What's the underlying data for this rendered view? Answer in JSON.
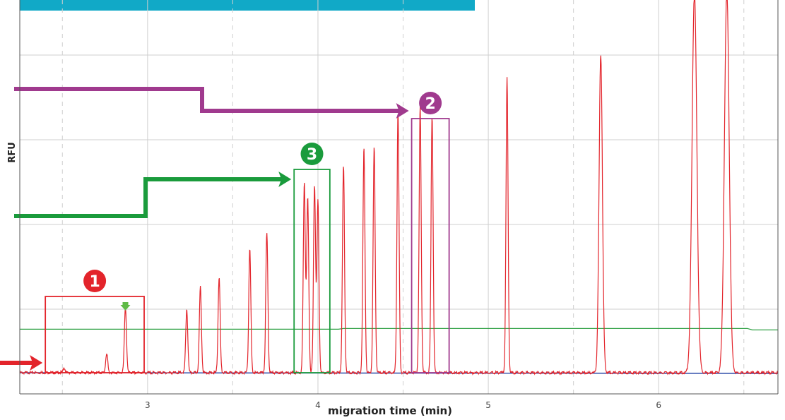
{
  "colors": {
    "banner": "#11a9c7",
    "trace": "#e3242b",
    "baseline": "#2b4aa8",
    "threshold": "#2ea043",
    "box1": "#e3242b",
    "box2": "#a03a8e",
    "box3": "#1a9b3c",
    "grid": "#cfcfcf",
    "axis": "#555555"
  },
  "chart_data": {
    "type": "line",
    "title": "",
    "xlabel": "migration time (min)",
    "ylabel": "RFU",
    "xlim": [
      2.25,
      6.7
    ],
    "ylim": [
      0,
      1
    ],
    "x_ticks": [
      {
        "label": "3",
        "value": 3
      },
      {
        "label": "4",
        "value": 4
      },
      {
        "label": "5",
        "value": 5
      },
      {
        "label": "6",
        "value": 6
      }
    ],
    "grid": true,
    "threshold_level": 0.137,
    "peaks": [
      {
        "x": 2.51,
        "y": 0.015
      },
      {
        "x": 2.76,
        "y": 0.06
      },
      {
        "x": 2.87,
        "y": 0.21
      },
      {
        "x": 3.23,
        "y": 0.2
      },
      {
        "x": 3.31,
        "y": 0.27
      },
      {
        "x": 3.42,
        "y": 0.3
      },
      {
        "x": 3.6,
        "y": 0.39
      },
      {
        "x": 3.7,
        "y": 0.44
      },
      {
        "x": 3.92,
        "y": 0.6
      },
      {
        "x": 3.94,
        "y": 0.55
      },
      {
        "x": 3.98,
        "y": 0.59
      },
      {
        "x": 4.0,
        "y": 0.54
      },
      {
        "x": 4.15,
        "y": 0.65
      },
      {
        "x": 4.27,
        "y": 0.71
      },
      {
        "x": 4.33,
        "y": 0.71
      },
      {
        "x": 4.47,
        "y": 0.82
      },
      {
        "x": 4.6,
        "y": 0.84
      },
      {
        "x": 4.67,
        "y": 0.81
      },
      {
        "x": 5.11,
        "y": 0.93
      },
      {
        "x": 5.66,
        "y": 1.0
      },
      {
        "x": 6.21,
        "y": 1.2
      },
      {
        "x": 6.4,
        "y": 1.2
      }
    ],
    "annotations": [
      {
        "id": "1",
        "label": "1",
        "x_range": [
          2.4,
          2.98
        ],
        "y_range": [
          0.0,
          0.24
        ]
      },
      {
        "id": "2",
        "label": "2",
        "x_range": [
          4.55,
          4.77
        ],
        "y_range": [
          0.0,
          0.8
        ]
      },
      {
        "id": "3",
        "label": "3",
        "x_range": [
          3.86,
          4.07
        ],
        "y_range": [
          0.0,
          0.64
        ]
      }
    ]
  }
}
